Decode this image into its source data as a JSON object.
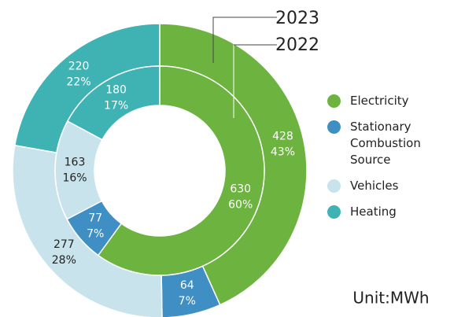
{
  "chart_data": {
    "type": "donut",
    "categories": [
      "Electricity",
      "Stationary Combustion Source",
      "Vehicles",
      "Heating"
    ],
    "colors": [
      "#6db33f",
      "#3f8fc4",
      "#c8e3ec",
      "#3fb3b3"
    ],
    "series": [
      {
        "name": "2023",
        "values": [
          428,
          64,
          277,
          220
        ],
        "percent_labels": [
          "43%",
          "7%",
          "28%",
          "22%"
        ]
      },
      {
        "name": "2022",
        "values": [
          630,
          77,
          163,
          180
        ],
        "percent_labels": [
          "60%",
          "7%",
          "16%",
          "17%"
        ]
      }
    ],
    "unit": "Unit:MWh"
  }
}
